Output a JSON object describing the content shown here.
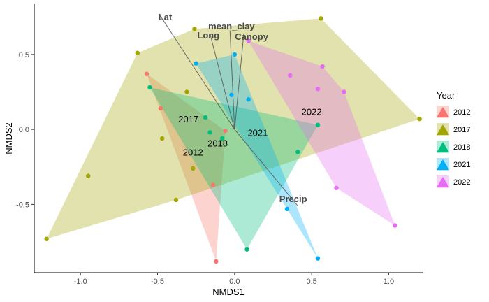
{
  "chart_data": {
    "type": "scatter",
    "title": "",
    "xlabel": "NMDS1",
    "ylabel": "NMDS2",
    "xlim": [
      -1.3,
      1.22
    ],
    "ylim": [
      -0.955,
      0.835
    ],
    "xticks": [
      -1.0,
      -0.5,
      0.0,
      0.5,
      1.0
    ],
    "xtick_labels": [
      "-1.0",
      "-0.5",
      "0.0",
      "0.5",
      "1.0"
    ],
    "yticks": [
      -0.5,
      0.0,
      0.5
    ],
    "ytick_labels": [
      "-0.5",
      "0.0",
      "0.5"
    ],
    "grid": false,
    "legend": {
      "title": "Year",
      "position": "right"
    },
    "series": [
      {
        "name": "2012",
        "color": "#F8766D",
        "points": [
          [
            -0.57,
            0.37
          ],
          [
            -0.48,
            0.14
          ],
          [
            -0.06,
            -0.01
          ],
          [
            -0.14,
            -0.37
          ],
          [
            -0.12,
            -0.88
          ]
        ],
        "hull": [
          [
            -0.57,
            0.37
          ],
          [
            -0.06,
            -0.01
          ],
          [
            -0.12,
            -0.88
          ]
        ],
        "centroid_label": {
          "text": "2012",
          "x": -0.27,
          "y": -0.15
        }
      },
      {
        "name": "2017",
        "color": "#A3A500",
        "points": [
          [
            -1.22,
            -0.73
          ],
          [
            -0.95,
            -0.31
          ],
          [
            -0.63,
            0.51
          ],
          [
            -0.47,
            -0.06
          ],
          [
            -0.38,
            -0.47
          ],
          [
            -0.31,
            0.25
          ],
          [
            -0.27,
            -0.26
          ],
          [
            -0.26,
            0.67
          ],
          [
            0.56,
            0.74
          ],
          [
            1.2,
            0.07
          ]
        ],
        "hull": [
          [
            -1.22,
            -0.73
          ],
          [
            -0.63,
            0.51
          ],
          [
            -0.26,
            0.67
          ],
          [
            0.56,
            0.74
          ],
          [
            1.2,
            0.07
          ],
          [
            -0.38,
            -0.47
          ]
        ],
        "centroid_label": {
          "text": "2017",
          "x": -0.3,
          "y": 0.07
        }
      },
      {
        "name": "2018",
        "color": "#00BF7D",
        "points": [
          [
            -0.55,
            0.28
          ],
          [
            -0.19,
            0.08
          ],
          [
            -0.16,
            -0.02
          ],
          [
            -0.08,
            -0.06
          ],
          [
            0.08,
            -0.8
          ],
          [
            0.41,
            -0.15
          ],
          [
            0.54,
            0.03
          ]
        ],
        "hull": [
          [
            -0.55,
            0.28
          ],
          [
            0.54,
            0.03
          ],
          [
            0.08,
            -0.8
          ]
        ],
        "centroid_label": {
          "text": "2018",
          "x": -0.11,
          "y": -0.09
        }
      },
      {
        "name": "2021",
        "color": "#00B0F6",
        "points": [
          [
            -0.25,
            0.44
          ],
          [
            -0.02,
            0.23
          ],
          [
            0.0,
            0.5
          ],
          [
            0.09,
            0.2
          ],
          [
            0.34,
            -0.53
          ],
          [
            0.54,
            -0.86
          ]
        ],
        "hull": [
          [
            -0.25,
            0.44
          ],
          [
            0.0,
            0.5
          ],
          [
            0.54,
            -0.86
          ],
          [
            0.34,
            -0.53
          ]
        ],
        "centroid_label": {
          "text": "2021",
          "x": 0.15,
          "y": -0.02
        }
      },
      {
        "name": "2022",
        "color": "#E76BF3",
        "points": [
          [
            0.09,
            0.59
          ],
          [
            0.36,
            0.36
          ],
          [
            0.54,
            0.27
          ],
          [
            0.57,
            0.42
          ],
          [
            0.66,
            -0.39
          ],
          [
            0.71,
            0.25
          ],
          [
            1.04,
            -0.64
          ]
        ],
        "hull": [
          [
            0.09,
            0.59
          ],
          [
            0.57,
            0.42
          ],
          [
            0.71,
            0.25
          ],
          [
            1.04,
            -0.64
          ],
          [
            0.66,
            -0.39
          ]
        ],
        "centroid_label": {
          "text": "2022",
          "x": 0.5,
          "y": 0.12
        }
      }
    ],
    "vectors": {
      "origin": [
        0.0,
        0.0
      ],
      "items": [
        {
          "name": "Lat",
          "end": [
            -0.49,
            0.77
          ],
          "label_pos": [
            -0.45,
            0.75
          ]
        },
        {
          "name": "mean_clay",
          "end": [
            -0.03,
            0.66
          ],
          "label_pos": [
            -0.02,
            0.69
          ]
        },
        {
          "name": "Long",
          "end": [
            -0.16,
            0.64
          ],
          "label_pos": [
            -0.17,
            0.63
          ]
        },
        {
          "name": "Canopy",
          "end": [
            0.06,
            0.64
          ],
          "label_pos": [
            0.11,
            0.62
          ]
        },
        {
          "name": "Precip",
          "end": [
            0.41,
            -0.51
          ],
          "label_pos": [
            0.38,
            -0.46
          ]
        }
      ]
    }
  }
}
